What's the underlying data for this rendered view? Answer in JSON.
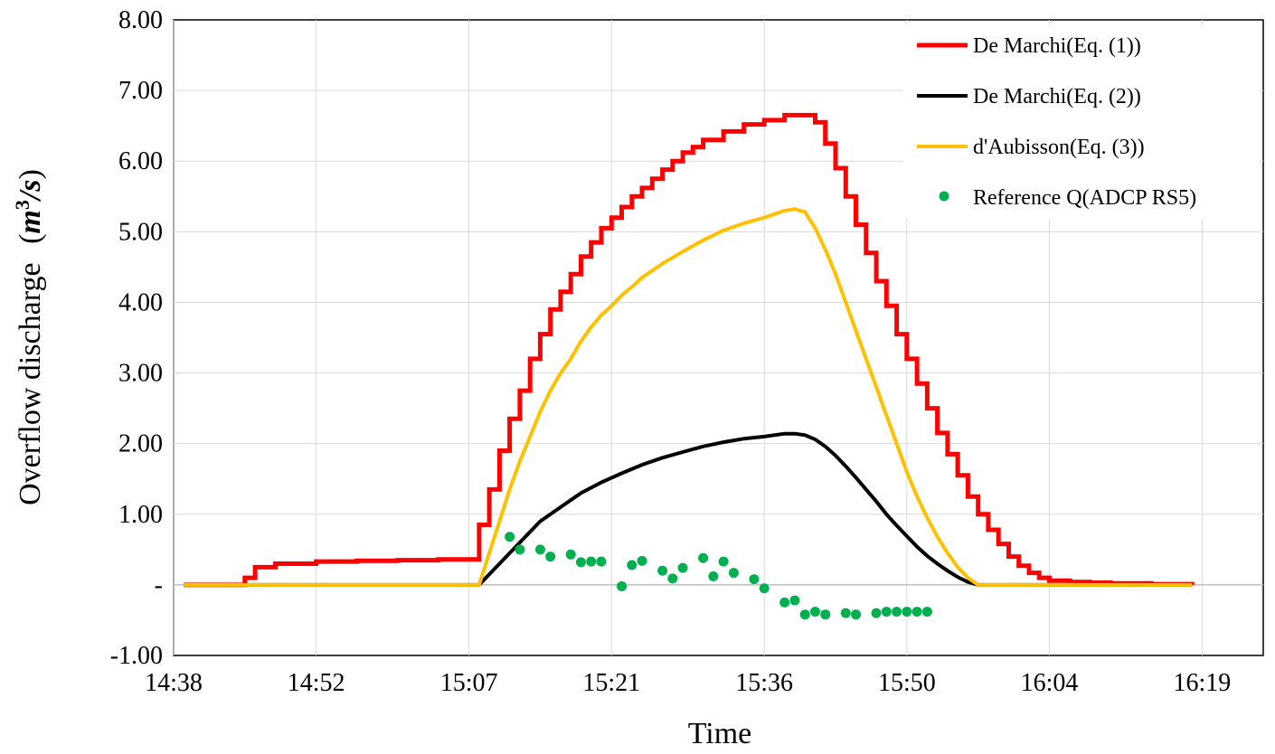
{
  "chart_data": {
    "type": "line",
    "xlabel": "Time",
    "ylabel": "Overflow discharge",
    "ylabel_unit": {
      "var": "m",
      "exp": "3",
      "den": "s"
    },
    "ylim": [
      -1.0,
      8.0
    ],
    "y_ticks": [
      "-1.00",
      "-",
      "1.00",
      "2.00",
      "3.00",
      "4.00",
      "5.00",
      "6.00",
      "7.00",
      "8.00"
    ],
    "y_tick_values": [
      -1,
      0,
      1,
      2,
      3,
      4,
      5,
      6,
      7,
      8
    ],
    "x_ticks": [
      "14:38",
      "14:52",
      "15:07",
      "15:21",
      "15:36",
      "15:50",
      "16:04",
      "16:19"
    ],
    "xlim": [
      "14:38",
      "16:25"
    ],
    "grid": true,
    "legend_position": "top-right",
    "series": [
      {
        "name": "De Marchi(Eq. (1))",
        "color": "#ff0000",
        "style": "stepped line",
        "x": [
          "14:39",
          "14:44",
          "14:45",
          "14:46",
          "14:48",
          "14:52",
          "14:56",
          "15:00",
          "15:04",
          "15:08",
          "15:08",
          "15:09",
          "15:10",
          "15:11",
          "15:12",
          "15:13",
          "15:14",
          "15:15",
          "15:16",
          "15:17",
          "15:18",
          "15:19",
          "15:20",
          "15:21",
          "15:22",
          "15:23",
          "15:24",
          "15:25",
          "15:26",
          "15:27",
          "15:28",
          "15:29",
          "15:30",
          "15:32",
          "15:34",
          "15:36",
          "15:38",
          "15:40",
          "15:41",
          "15:42",
          "15:43",
          "15:44",
          "15:45",
          "15:46",
          "15:47",
          "15:48",
          "15:49",
          "15:50",
          "15:51",
          "15:52",
          "15:53",
          "15:54",
          "15:55",
          "15:56",
          "15:57",
          "15:58",
          "15:59",
          "16:00",
          "16:01",
          "16:02",
          "16:03",
          "16:04",
          "16:06",
          "16:08",
          "16:10",
          "16:14",
          "16:18"
        ],
        "y": [
          0,
          0,
          0.1,
          0.25,
          0.3,
          0.33,
          0.34,
          0.35,
          0.36,
          0.4,
          0.85,
          1.35,
          1.9,
          2.35,
          2.75,
          3.2,
          3.55,
          3.9,
          4.15,
          4.4,
          4.65,
          4.85,
          5.05,
          5.2,
          5.35,
          5.5,
          5.62,
          5.75,
          5.88,
          6.0,
          6.12,
          6.2,
          6.3,
          6.42,
          6.52,
          6.58,
          6.65,
          6.65,
          6.55,
          6.25,
          5.9,
          5.5,
          5.1,
          4.7,
          4.3,
          3.95,
          3.55,
          3.2,
          2.85,
          2.5,
          2.15,
          1.85,
          1.55,
          1.25,
          1.0,
          0.78,
          0.58,
          0.4,
          0.27,
          0.17,
          0.1,
          0.06,
          0.04,
          0.03,
          0.02,
          0.01,
          0
        ]
      },
      {
        "name": "De Marchi(Eq. (2))",
        "color": "#000000",
        "x": [
          "14:39",
          "15:08",
          "15:09",
          "15:10",
          "15:12",
          "15:14",
          "15:16",
          "15:18",
          "15:20",
          "15:22",
          "15:24",
          "15:26",
          "15:28",
          "15:30",
          "15:32",
          "15:34",
          "15:36",
          "15:38",
          "15:39",
          "15:40",
          "15:41",
          "15:42",
          "15:43",
          "15:44",
          "15:45",
          "15:46",
          "15:47",
          "15:48",
          "15:49",
          "15:50",
          "15:51",
          "15:52",
          "15:53",
          "15:54",
          "15:55",
          "15:56",
          "15:57",
          "16:18"
        ],
        "y": [
          0,
          0,
          0.15,
          0.3,
          0.6,
          0.9,
          1.1,
          1.3,
          1.45,
          1.58,
          1.7,
          1.8,
          1.88,
          1.96,
          2.02,
          2.07,
          2.1,
          2.14,
          2.14,
          2.12,
          2.06,
          1.96,
          1.83,
          1.68,
          1.52,
          1.35,
          1.18,
          1.0,
          0.84,
          0.69,
          0.54,
          0.41,
          0.3,
          0.2,
          0.11,
          0.04,
          0,
          0
        ]
      },
      {
        "name": "d'Aubisson(Eq. (3))",
        "color": "#ffc000",
        "x": [
          "14:39",
          "15:08",
          "15:09",
          "15:10",
          "15:11",
          "15:12",
          "15:13",
          "15:14",
          "15:15",
          "15:16",
          "15:17",
          "15:18",
          "15:19",
          "15:20",
          "15:21",
          "15:22",
          "15:23",
          "15:24",
          "15:26",
          "15:28",
          "15:30",
          "15:32",
          "15:34",
          "15:36",
          "15:38",
          "15:39",
          "15:40",
          "15:41",
          "15:42",
          "15:43",
          "15:44",
          "15:45",
          "15:46",
          "15:47",
          "15:48",
          "15:49",
          "15:50",
          "15:51",
          "15:52",
          "15:53",
          "15:54",
          "15:55",
          "15:56",
          "15:57",
          "16:18"
        ],
        "y": [
          0,
          0,
          0.45,
          0.9,
          1.35,
          1.75,
          2.1,
          2.45,
          2.75,
          3.0,
          3.2,
          3.45,
          3.65,
          3.82,
          3.95,
          4.1,
          4.22,
          4.35,
          4.55,
          4.72,
          4.88,
          5.02,
          5.12,
          5.2,
          5.3,
          5.32,
          5.28,
          5.05,
          4.75,
          4.4,
          4.0,
          3.6,
          3.2,
          2.8,
          2.4,
          2.0,
          1.6,
          1.25,
          0.95,
          0.68,
          0.45,
          0.25,
          0.1,
          0,
          0
        ]
      },
      {
        "name": "Reference Q(ADCP RS5)",
        "color": "#00b050",
        "style": "markers",
        "x": [
          "15:11",
          "15:12",
          "15:14",
          "15:15",
          "15:17",
          "15:18",
          "15:19",
          "15:20",
          "15:22",
          "15:23",
          "15:24",
          "15:26",
          "15:27",
          "15:28",
          "15:30",
          "15:31",
          "15:32",
          "15:33",
          "15:35",
          "15:36",
          "15:38",
          "15:39",
          "15:40",
          "15:41",
          "15:42",
          "15:44",
          "15:45",
          "15:47",
          "15:48",
          "15:49",
          "15:50",
          "15:51",
          "15:52"
        ],
        "y": [
          0.68,
          0.5,
          0.5,
          0.4,
          0.43,
          0.32,
          0.33,
          0.33,
          -0.02,
          0.28,
          0.34,
          0.2,
          0.09,
          0.24,
          0.38,
          0.12,
          0.33,
          0.17,
          0.08,
          -0.05,
          -0.25,
          -0.22,
          -0.42,
          -0.38,
          -0.42,
          -0.4,
          -0.42,
          -0.4,
          -0.38,
          -0.38,
          -0.38,
          -0.38,
          -0.38
        ]
      }
    ]
  }
}
